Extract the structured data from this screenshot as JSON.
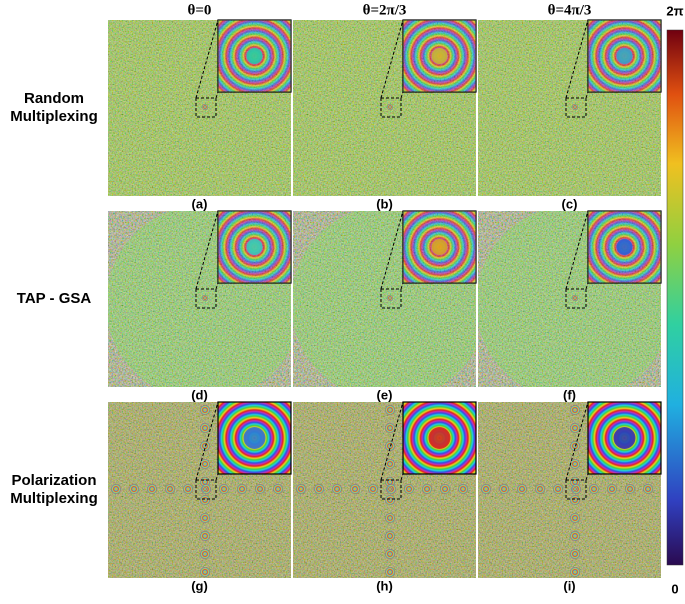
{
  "columns": [
    "θ=0",
    "θ=2π/3",
    "θ=4π/3"
  ],
  "rows": [
    [
      "Random",
      "Multiplexing"
    ],
    [
      "TAP - GSA"
    ],
    [
      "Polarization",
      "Multiplexing"
    ]
  ],
  "panels": [
    "(a)",
    "(b)",
    "(c)",
    "(d)",
    "(e)",
    "(f)",
    "(g)",
    "(h)",
    "(i)"
  ],
  "colorbar": {
    "max": "2π",
    "min": "0"
  }
}
